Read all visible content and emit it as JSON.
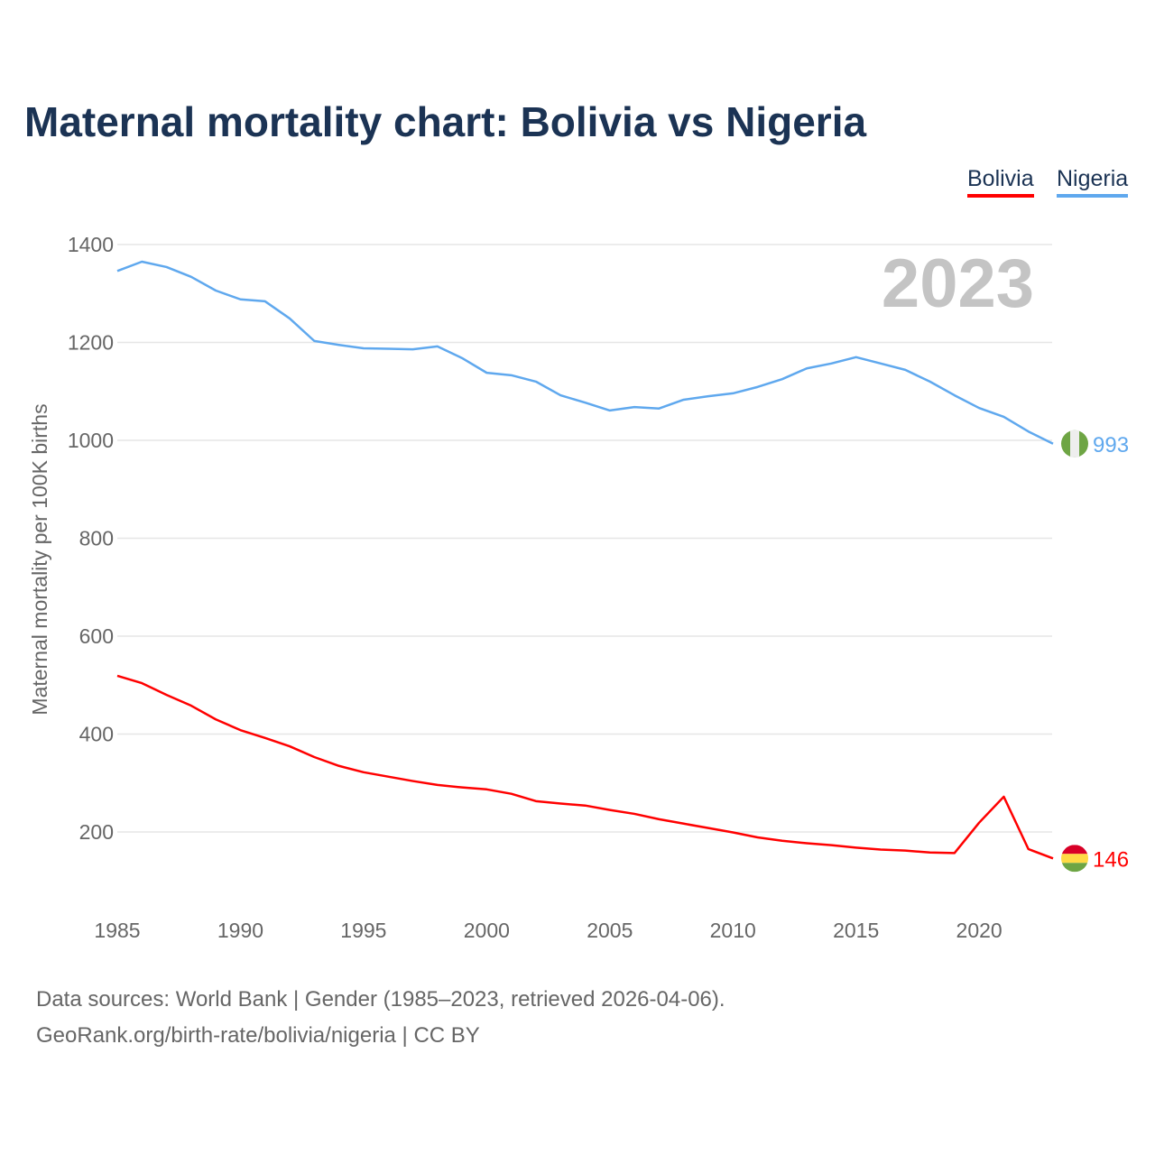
{
  "chart_data": {
    "type": "line",
    "title": "Maternal mortality chart: Bolivia vs Nigeria",
    "ylabel": "Maternal mortality per 100K births",
    "xlabel": "",
    "year_label": "2023",
    "xlim": [
      1985,
      2023
    ],
    "ylim": [
      0,
      1400
    ],
    "xticks": [
      1985,
      1990,
      1995,
      2000,
      2005,
      2010,
      2015,
      2020
    ],
    "yticks": [
      200,
      400,
      600,
      800,
      1000,
      1200,
      1400
    ],
    "grid": true,
    "legend_position": "top-right",
    "x": [
      1985,
      1986,
      1987,
      1988,
      1989,
      1990,
      1991,
      1992,
      1993,
      1994,
      1995,
      1996,
      1997,
      1998,
      1999,
      2000,
      2001,
      2002,
      2003,
      2004,
      2005,
      2006,
      2007,
      2008,
      2009,
      2010,
      2011,
      2012,
      2013,
      2014,
      2015,
      2016,
      2017,
      2018,
      2019,
      2020,
      2021,
      2022,
      2023
    ],
    "series": [
      {
        "name": "Bolivia",
        "color": "#ff0000",
        "end_label": "146",
        "values": [
          519,
          504,
          480,
          458,
          430,
          408,
          392,
          375,
          353,
          335,
          322,
          313,
          304,
          296,
          291,
          287,
          278,
          263,
          258,
          254,
          245,
          237,
          226,
          217,
          208,
          199,
          189,
          182,
          177,
          173,
          168,
          164,
          162,
          158,
          157,
          219,
          272,
          165,
          146
        ]
      },
      {
        "name": "Nigeria",
        "color": "#5fa8ee",
        "end_label": "993",
        "values": [
          1346,
          1365,
          1354,
          1334,
          1306,
          1288,
          1284,
          1249,
          1203,
          1195,
          1188,
          1187,
          1186,
          1192,
          1168,
          1138,
          1133,
          1120,
          1092,
          1077,
          1061,
          1068,
          1065,
          1083,
          1090,
          1096,
          1109,
          1125,
          1147,
          1157,
          1170,
          1157,
          1144,
          1120,
          1092,
          1066,
          1048,
          1018,
          993
        ]
      }
    ]
  },
  "footer": {
    "line1": "Data sources: World Bank | Gender (1985–2023, retrieved 2026-04-06).",
    "line2": "GeoRank.org/birth-rate/bolivia/nigeria | CC BY"
  }
}
